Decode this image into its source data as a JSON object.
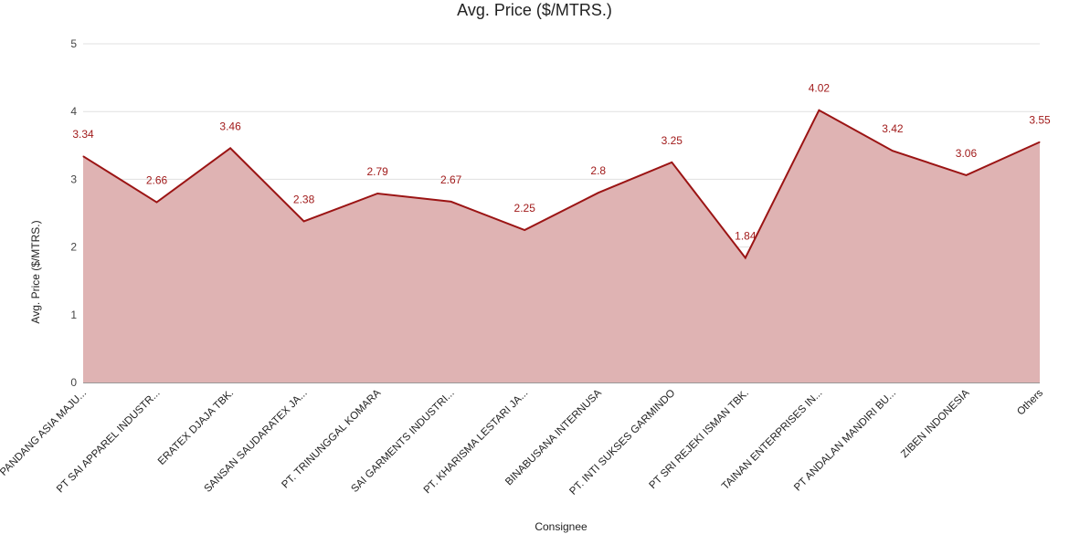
{
  "chart_data": {
    "type": "area",
    "title": "Avg. Price ($/MTRS.)",
    "xlabel": "Consignee",
    "ylabel": "Avg. Price ($/MTRS.)",
    "ylim": [
      0,
      5
    ],
    "yticks": [
      0,
      1,
      2,
      3,
      4,
      5
    ],
    "categories": [
      "PT PANDANG ASIA MAJU...",
      "PT SAI APPAREL INDUSTR...",
      "ERATEX DJAJA TBK.",
      "SANSAN SAUDARATEX JA...",
      "PT. TRINUNGGAL KOMARA",
      "SAI GARMENTS INDUSTRI...",
      "PT. KHARISMA LESTARI JA...",
      "BINABUSANA INTERNUSA",
      "PT. INTI SUKSES GARMINDO",
      "PT SRI REJEKI ISMAN TBK.",
      "TAINAN ENTERPRISES IN...",
      "PT ANDALAN MANDIRI BU...",
      "ZIBEN INDONESIA",
      "Others"
    ],
    "values": [
      3.34,
      2.66,
      3.46,
      2.38,
      2.79,
      2.67,
      2.25,
      2.8,
      3.25,
      1.84,
      4.02,
      3.42,
      3.06,
      3.55
    ],
    "data_labels": [
      "3.34",
      "2.66",
      "3.46",
      "2.38",
      "2.79",
      "2.67",
      "2.25",
      "2.8",
      "3.25",
      "1.84",
      "4.02",
      "3.42",
      "3.06",
      "3.55"
    ],
    "grid": true,
    "legend": "none",
    "colors": {
      "line": "#9b1414",
      "fill": "#dfb3b3",
      "grid": "#e0e0e0",
      "label": "#a11b1b"
    }
  }
}
